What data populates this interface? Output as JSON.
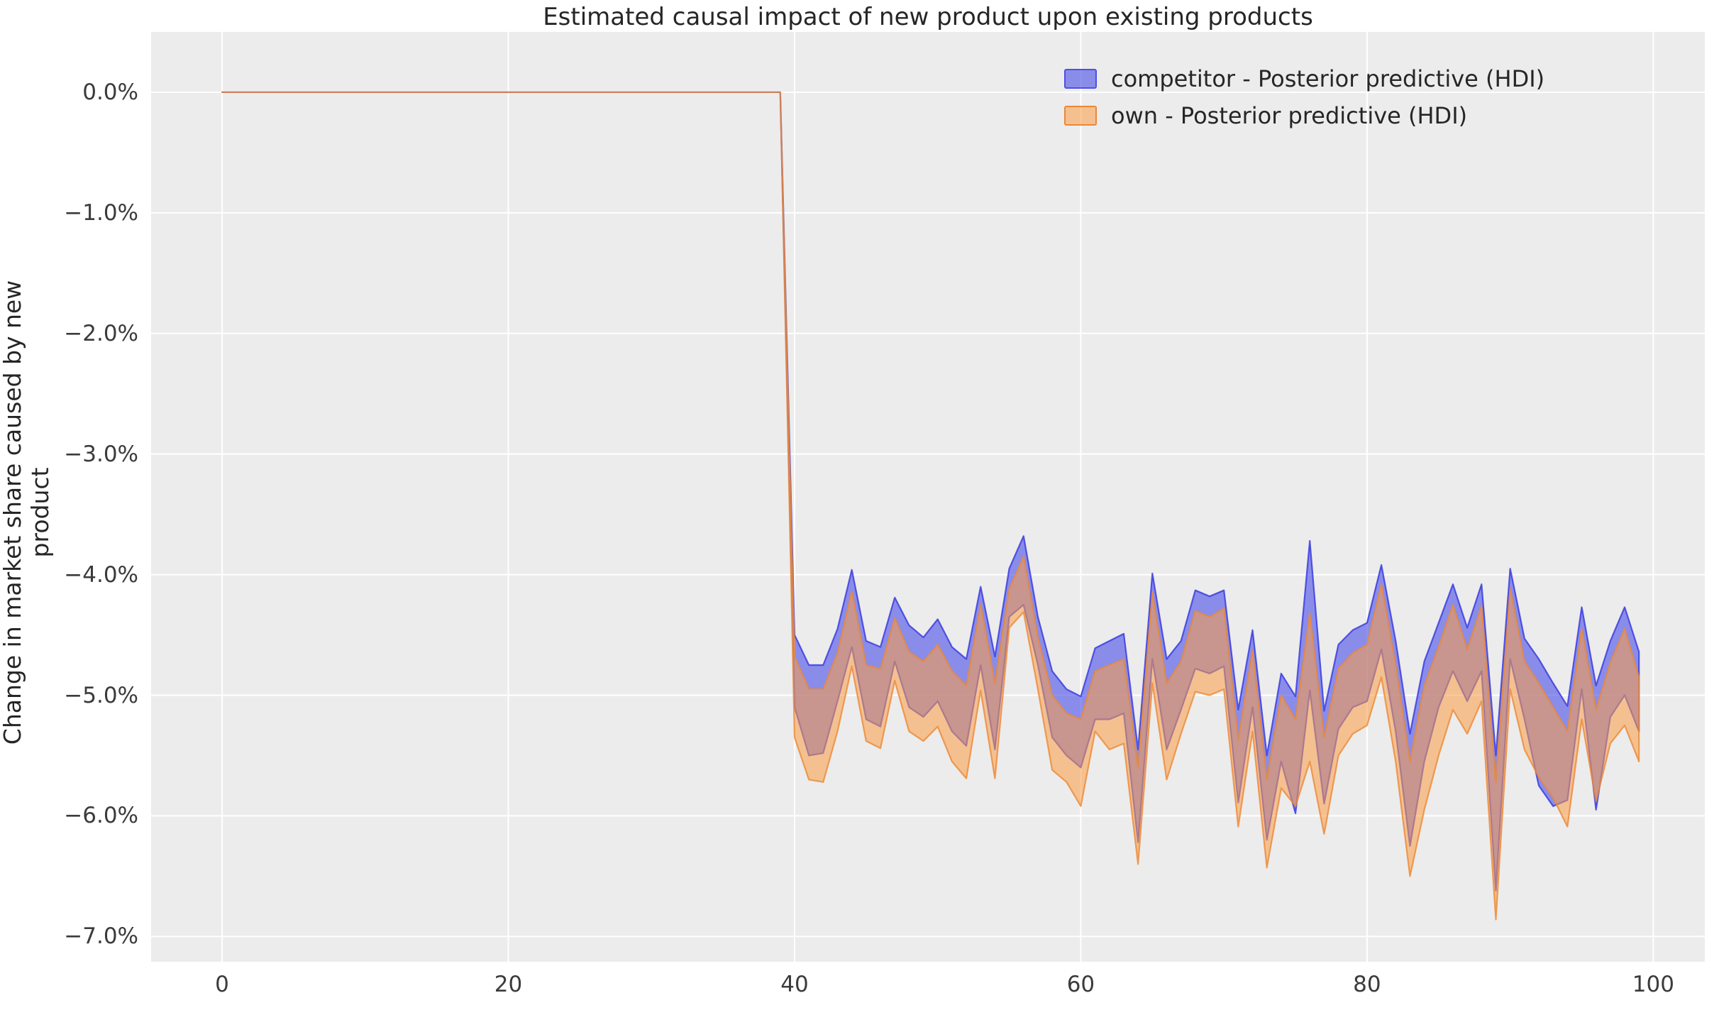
{
  "chart_data": {
    "type": "area",
    "title": "Estimated causal impact of new product upon existing products",
    "ylabel": "Change in market share caused by new product",
    "xlabel": "",
    "background_plot_color": "#ececec",
    "grid_color": "#ffffff",
    "grid": "on",
    "legend_position": "upper right",
    "xlim": [
      -4.96,
      103.6
    ],
    "ylim": [
      -7.21,
      0.5
    ],
    "x_ticks": [
      0,
      20,
      40,
      60,
      80,
      100
    ],
    "x_tick_labels": [
      "0",
      "20",
      "40",
      "60",
      "80",
      "100"
    ],
    "y_tick_values": [
      0,
      -1,
      -2,
      -3,
      -4,
      -5,
      -6,
      -7
    ],
    "y_tick_labels": [
      "0.0%",
      "−1.0%",
      "−2.0%",
      "−3.0%",
      "−4.0%",
      "−5.0%",
      "−6.0%",
      "−7.0%"
    ],
    "legend": [
      {
        "label": "competitor - Posterior predictive (HDI)",
        "fill": "rgba(77,80,230,0.62)",
        "edge": "#4d50e6",
        "line": "rgba(51,54,224,0.8)"
      },
      {
        "label": "own - Posterior predictive (HDI)",
        "fill": "rgba(252,157,69,0.55)",
        "edge": "#ec8835",
        "line": "rgba(236,136,53,0.8)"
      }
    ],
    "pre_period": {
      "x_start": 0,
      "x_end": 39,
      "value": 0,
      "note": "both HDI bands are zero-width at 0.0% before the intervention"
    },
    "post_x_start": 40,
    "series": [
      {
        "name": "competitor - Posterior predictive (HDI)",
        "upper": [
          -4.5,
          -4.75,
          -4.75,
          -4.45,
          -3.96,
          -4.55,
          -4.6,
          -4.19,
          -4.42,
          -4.52,
          -4.37,
          -4.6,
          -4.7,
          -4.1,
          -4.68,
          -3.95,
          -3.68,
          -4.35,
          -4.8,
          -4.95,
          -5.01,
          -4.61,
          -4.55,
          -4.49,
          -5.45,
          -3.99,
          -4.7,
          -4.55,
          -4.13,
          -4.18,
          -4.13,
          -5.12,
          -4.46,
          -5.5,
          -4.82,
          -5.01,
          -3.72,
          -5.13,
          -4.58,
          -4.46,
          -4.4,
          -3.92,
          -4.55,
          -5.32,
          -4.72,
          -4.4,
          -4.08,
          -4.44,
          -4.08,
          -5.5,
          -3.95,
          -4.53,
          -4.7,
          -4.9,
          -5.09,
          -4.27,
          -4.92,
          -4.55,
          -4.27,
          -4.64
        ],
        "lower": [
          -5.1,
          -5.5,
          -5.48,
          -5.05,
          -4.6,
          -5.2,
          -5.26,
          -4.72,
          -5.1,
          -5.18,
          -5.05,
          -5.3,
          -5.42,
          -4.75,
          -5.45,
          -4.35,
          -4.25,
          -4.75,
          -5.35,
          -5.5,
          -5.6,
          -5.2,
          -5.2,
          -5.15,
          -6.22,
          -4.7,
          -5.45,
          -5.12,
          -4.78,
          -4.82,
          -4.76,
          -5.89,
          -5.1,
          -6.2,
          -5.55,
          -5.98,
          -4.96,
          -5.9,
          -5.28,
          -5.1,
          -5.05,
          -4.62,
          -5.3,
          -6.25,
          -5.55,
          -5.1,
          -4.8,
          -5.05,
          -4.8,
          -6.62,
          -4.7,
          -5.2,
          -5.75,
          -5.92,
          -5.87,
          -4.95,
          -5.95,
          -5.18,
          -5.0,
          -5.3
        ]
      },
      {
        "name": "own - Posterior predictive (HDI)",
        "upper": [
          -4.68,
          -4.95,
          -4.95,
          -4.65,
          -4.14,
          -4.75,
          -4.78,
          -4.36,
          -4.64,
          -4.72,
          -4.58,
          -4.8,
          -4.92,
          -4.25,
          -4.9,
          -4.12,
          -3.85,
          -4.52,
          -5.0,
          -5.15,
          -5.2,
          -4.8,
          -4.75,
          -4.7,
          -5.6,
          -4.15,
          -4.9,
          -4.72,
          -4.3,
          -4.35,
          -4.28,
          -5.37,
          -4.63,
          -5.7,
          -5.0,
          -5.2,
          -4.32,
          -5.35,
          -4.78,
          -4.65,
          -4.58,
          -4.08,
          -4.75,
          -5.55,
          -4.92,
          -4.6,
          -4.25,
          -4.62,
          -4.26,
          -5.72,
          -4.12,
          -4.72,
          -4.9,
          -5.1,
          -5.3,
          -4.45,
          -5.12,
          -4.73,
          -4.45,
          -4.85
        ],
        "lower": [
          -5.35,
          -5.7,
          -5.72,
          -5.3,
          -4.76,
          -5.38,
          -5.44,
          -4.88,
          -5.3,
          -5.38,
          -5.26,
          -5.55,
          -5.69,
          -4.96,
          -5.69,
          -4.44,
          -4.31,
          -4.95,
          -5.62,
          -5.72,
          -5.92,
          -5.3,
          -5.45,
          -5.4,
          -6.4,
          -4.9,
          -5.7,
          -5.32,
          -4.97,
          -5.0,
          -4.95,
          -6.09,
          -5.3,
          -6.43,
          -5.77,
          -5.92,
          -5.55,
          -6.15,
          -5.5,
          -5.32,
          -5.25,
          -4.85,
          -5.55,
          -6.5,
          -5.95,
          -5.5,
          -5.12,
          -5.32,
          -5.05,
          -6.86,
          -4.95,
          -5.45,
          -5.68,
          -5.85,
          -6.09,
          -5.2,
          -5.88,
          -5.4,
          -5.25,
          -5.55
        ]
      }
    ]
  }
}
